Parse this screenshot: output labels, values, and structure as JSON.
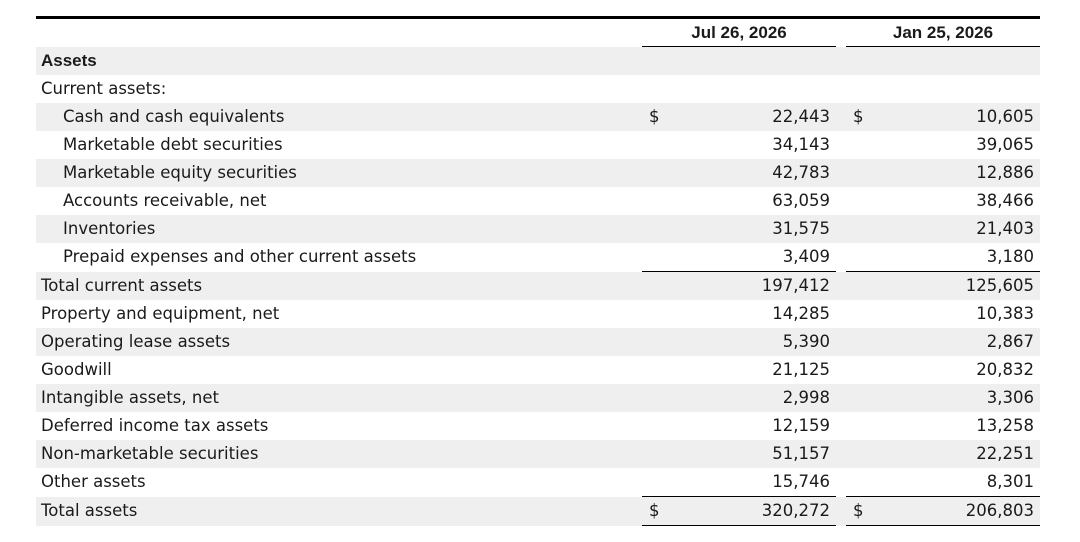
{
  "columns": [
    "Jul 26, 2026",
    "Jan 25, 2026"
  ],
  "section_title": "Assets",
  "subsection_title": "Current assets:",
  "rows": [
    {
      "label": "Cash and cash equivalents",
      "currency": "$",
      "c1": "22,443",
      "c2": "10,605"
    },
    {
      "label": "Marketable debt securities",
      "currency": "",
      "c1": "34,143",
      "c2": "39,065"
    },
    {
      "label": "Marketable equity securities",
      "currency": "",
      "c1": "42,783",
      "c2": "12,886"
    },
    {
      "label": "Accounts receivable, net",
      "currency": "",
      "c1": "63,059",
      "c2": "38,466"
    },
    {
      "label": "Inventories",
      "currency": "",
      "c1": "31,575",
      "c2": "21,403"
    },
    {
      "label": "Prepaid expenses and other current assets",
      "currency": "",
      "c1": "3,409",
      "c2": "3,180"
    },
    {
      "label": "Total current assets",
      "currency": "",
      "c1": "197,412",
      "c2": "125,605"
    },
    {
      "label": "Property and equipment, net",
      "currency": "",
      "c1": "14,285",
      "c2": "10,383"
    },
    {
      "label": "Operating lease assets",
      "currency": "",
      "c1": "5,390",
      "c2": "2,867"
    },
    {
      "label": "Goodwill",
      "currency": "",
      "c1": "21,125",
      "c2": "20,832"
    },
    {
      "label": "Intangible assets, net",
      "currency": "",
      "c1": "2,998",
      "c2": "3,306"
    },
    {
      "label": "Deferred income tax assets",
      "currency": "",
      "c1": "12,159",
      "c2": "13,258"
    },
    {
      "label": "Non-marketable securities",
      "currency": "",
      "c1": "51,157",
      "c2": "22,251"
    },
    {
      "label": "Other assets",
      "currency": "",
      "c1": "15,746",
      "c2": "8,301"
    },
    {
      "label": "Total assets",
      "currency": "$",
      "c1": "320,272",
      "c2": "206,803"
    }
  ]
}
